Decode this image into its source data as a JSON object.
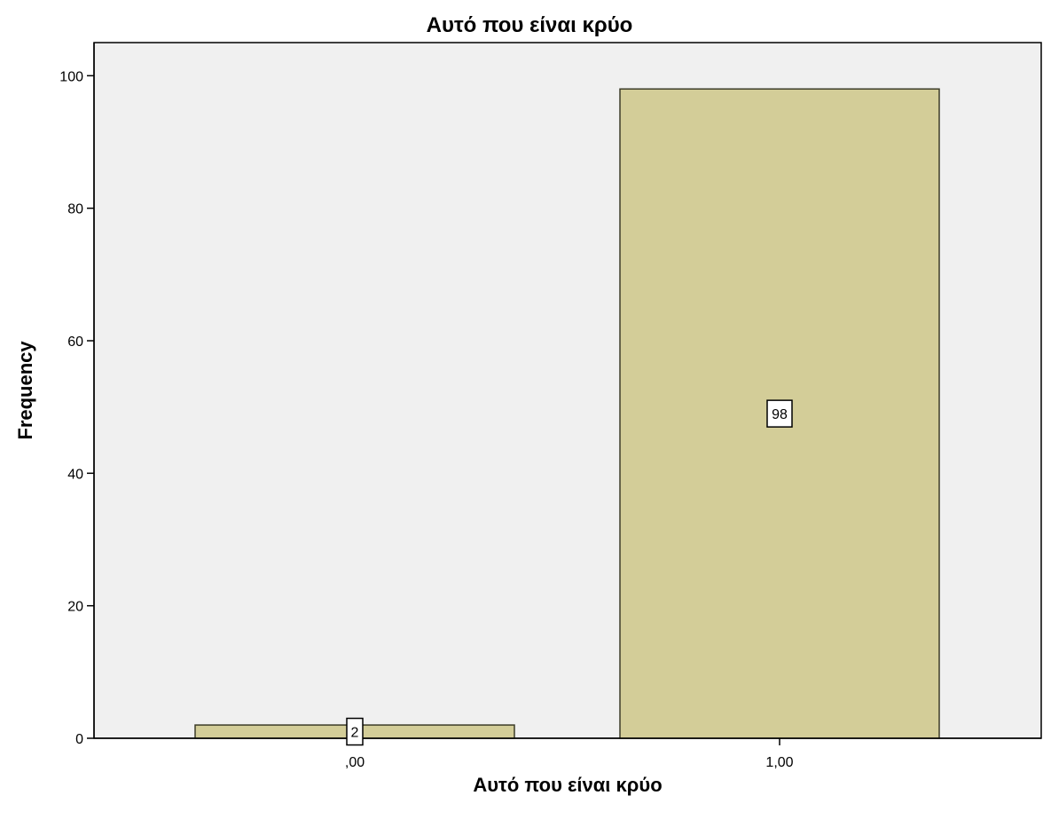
{
  "chart_data": {
    "type": "bar",
    "title": "Αυτό που είναι κρύο",
    "xlabel": "Αυτό που είναι κρύο",
    "ylabel": "Frequency",
    "categories": [
      ",00",
      "1,00"
    ],
    "values": [
      2,
      98
    ],
    "data_labels": [
      "2",
      "98"
    ],
    "ylim": [
      0,
      105
    ],
    "yticks": [
      0,
      20,
      40,
      60,
      80,
      100
    ],
    "ytick_labels": [
      "0",
      "20",
      "40",
      "60",
      "80",
      "100"
    ],
    "grid": false,
    "legend": "none",
    "colors": {
      "bar_fill": "#d3cd98",
      "bar_stroke": "#3c3c28",
      "plot_background": "#f0f0f0",
      "plot_border": "#000000",
      "label_box_fill": "#ffffff",
      "label_box_stroke": "#000000"
    }
  }
}
